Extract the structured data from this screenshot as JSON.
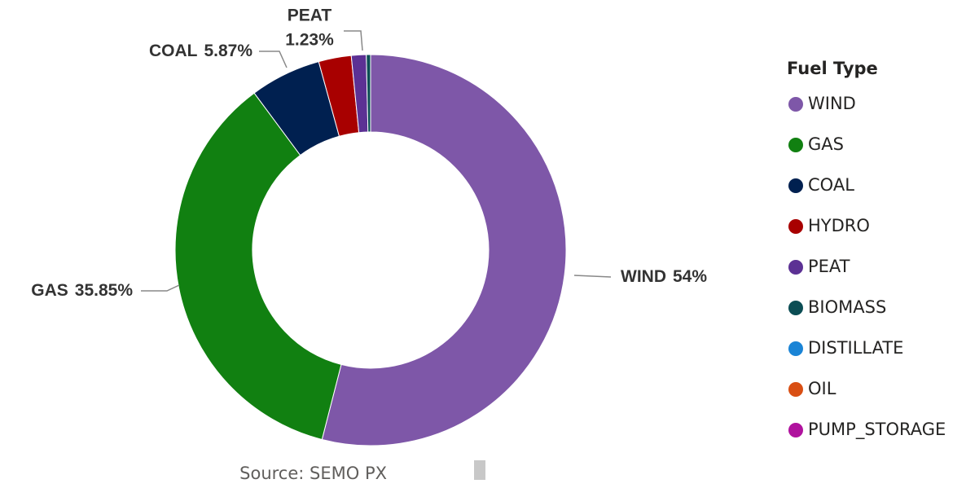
{
  "chart_data": {
    "type": "donut",
    "legend_title": "Fuel Type",
    "source": "Source: SEMO PX",
    "categories": [
      "WIND",
      "GAS",
      "COAL",
      "HYDRO",
      "PEAT",
      "BIOMASS",
      "DISTILLATE",
      "OIL",
      "PUMP_STORAGE"
    ],
    "values": [
      54,
      35.85,
      5.87,
      2.7,
      1.23,
      0.35,
      0,
      0,
      0
    ],
    "value_labels": [
      "54%",
      "35.85%",
      "5.87%",
      null,
      "1.23%",
      null,
      null,
      null,
      null
    ],
    "colors": [
      "#7e57a8",
      "#118011",
      "#002050",
      "#a80000",
      "#5c3194",
      "#0b4d54",
      "#1a84d6",
      "#d94f14",
      "#b0129e"
    ],
    "legend": "right"
  }
}
